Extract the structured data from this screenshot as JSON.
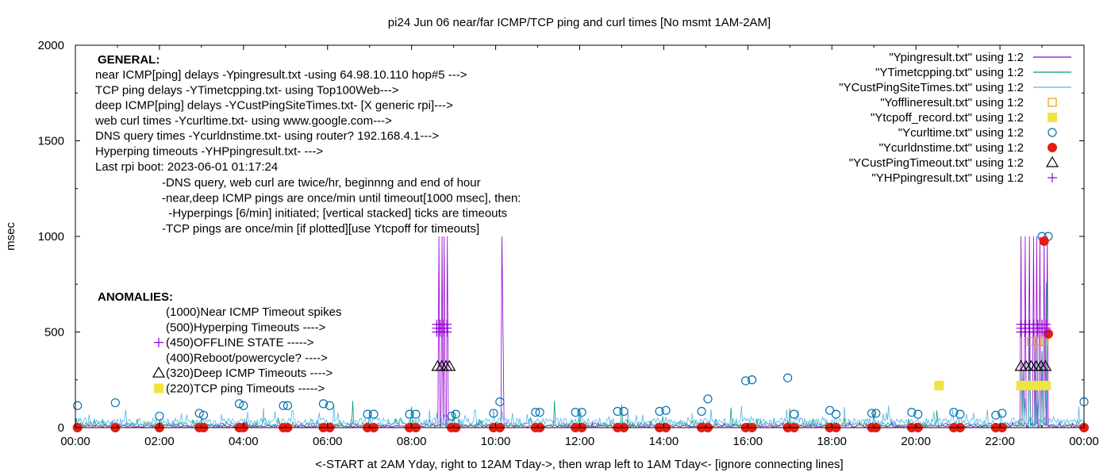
{
  "chart_data": {
    "type": "line",
    "title": "pi24 Jun 06  near/far ICMP/TCP ping and curl times [No msmt 1AM-2AM]",
    "xlabel": "<-START at 2AM Yday, right to 12AM Tday->, then wrap left to 1AM Tday<- [ignore connecting lines]",
    "ylabel": "msec",
    "xlim": [
      0,
      24
    ],
    "ylim": [
      0,
      2000
    ],
    "grid": false,
    "legend_placement": "top-right",
    "x_ticks": [
      "00:00",
      "02:00",
      "04:00",
      "06:00",
      "08:00",
      "10:00",
      "12:00",
      "14:00",
      "16:00",
      "18:00",
      "20:00",
      "22:00",
      "00:00"
    ],
    "y_ticks": [
      "0",
      "500",
      "1000",
      "1500",
      "2000"
    ],
    "general_header": "GENERAL:",
    "general_lines": [
      "near ICMP[ping] delays -Ypingresult.txt -using 64.98.10.110 hop#5 --->",
      "TCP ping delays -YTimetcpping.txt- using Top100Web--->",
      "deep ICMP[ping] delays -YCustPingSiteTimes.txt- [X generic rpi]--->",
      "web curl times -Ycurltime.txt- using www.google.com--->",
      "DNS query times -Ycurldnstime.txt- using router? 192.168.4.1--->",
      "Hyperping timeouts -YHPpingresult.txt- --->",
      "Last rpi boot: 2023-06-01 01:17:24"
    ],
    "notes": [
      "-DNS query, web curl are twice/hr, beginnng and end of hour",
      "-near,deep ICMP pings are once/min until timeout[1000 msec], then:",
      "  -Hyperpings [6/min] initiated; [vertical stacked] ticks are timeouts",
      "-TCP pings are once/min [if plotted][use Ytcpoff for timeouts]"
    ],
    "anomalies_header": "ANOMALIES:",
    "anomalies": [
      {
        "text": "(1000)Near ICMP Timeout spikes",
        "marker": "none"
      },
      {
        "text": "(500)Hyperping Timeouts ---->",
        "marker": "plus"
      },
      {
        "text": "(450)OFFLINE STATE ----->",
        "marker": "none"
      },
      {
        "text": "(400)Reboot/powercycle? ---->",
        "marker": "triangle"
      },
      {
        "text": "(320)Deep ICMP Timeouts ---->",
        "marker": "square"
      },
      {
        "text": "(220)TCP ping Timeouts ----->",
        "marker": "none"
      }
    ],
    "colors": {
      "ping": "#9400d3",
      "tcp": "#009e73",
      "cust": "#56b4e9",
      "offline": "#e69f00",
      "tcpoff": "#f0e442",
      "curl": "#0072b2",
      "dns": "#e51e10",
      "custtimeout": "#000000",
      "hpping": "#9400d3"
    },
    "series": [
      {
        "name": "\"Ypingresult.txt\" using 1:2",
        "style": "line",
        "color": "#9400d3",
        "baseline": 8,
        "spikes": [
          [
            8.65,
            1000
          ],
          [
            8.72,
            1000
          ],
          [
            8.78,
            1000
          ],
          [
            8.86,
            1000
          ],
          [
            10.15,
            1000
          ],
          [
            10.18,
            500
          ],
          [
            22.5,
            1000
          ],
          [
            22.6,
            1000
          ],
          [
            22.7,
            1000
          ],
          [
            22.8,
            1000
          ],
          [
            22.88,
            1000
          ],
          [
            22.95,
            1000
          ],
          [
            23.05,
            1000
          ],
          [
            23.12,
            1000
          ]
        ]
      },
      {
        "name": "\"YTimetcpping.txt\" using 1:2",
        "style": "line",
        "color": "#009e73",
        "baseline": 15,
        "spikes": [
          [
            2.0,
            40
          ],
          [
            6.6,
            140
          ],
          [
            7.0,
            90
          ],
          [
            8.0,
            110
          ],
          [
            9.0,
            90
          ],
          [
            11.4,
            140
          ],
          [
            12.0,
            100
          ],
          [
            13.0,
            120
          ],
          [
            15.6,
            105
          ],
          [
            17.0,
            100
          ],
          [
            19.0,
            90
          ],
          [
            20.5,
            90
          ],
          [
            22.55,
            300
          ],
          [
            22.7,
            480
          ],
          [
            22.85,
            420
          ],
          [
            23.0,
            400
          ],
          [
            23.1,
            760
          ]
        ]
      },
      {
        "name": "\"YCustPingSiteTimes.txt\" using 1:2",
        "style": "line",
        "color": "#56b4e9",
        "baseline": 30,
        "spikes": [
          [
            8.7,
            60
          ],
          [
            10.1,
            50
          ],
          [
            22.6,
            150
          ],
          [
            22.9,
            180
          ],
          [
            23.1,
            200
          ]
        ]
      },
      {
        "name": "\"Yofflineresult.txt\" using 1:2",
        "style": "square-open",
        "color": "#e69f00",
        "points": [
          [
            22.75,
            450
          ],
          [
            22.9,
            450
          ],
          [
            23.05,
            450
          ]
        ]
      },
      {
        "name": "\"Ytcpoff_record.txt\" using 1:2",
        "style": "square-filled",
        "color": "#f0e442",
        "points": [
          [
            20.55,
            220
          ],
          [
            22.5,
            220
          ],
          [
            22.62,
            220
          ],
          [
            22.74,
            220
          ],
          [
            22.86,
            220
          ],
          [
            22.98,
            220
          ],
          [
            23.1,
            220
          ]
        ]
      },
      {
        "name": "\"Ycurltime.txt\" using 1:2",
        "style": "circle-open",
        "color": "#0072b2",
        "points": [
          [
            0.05,
            115
          ],
          [
            0.95,
            130
          ],
          [
            2.0,
            60
          ],
          [
            2.95,
            75
          ],
          [
            3.05,
            65
          ],
          [
            3.9,
            125
          ],
          [
            4.0,
            115
          ],
          [
            4.95,
            115
          ],
          [
            5.05,
            115
          ],
          [
            5.9,
            125
          ],
          [
            6.05,
            115
          ],
          [
            6.95,
            70
          ],
          [
            7.1,
            70
          ],
          [
            7.95,
            70
          ],
          [
            8.1,
            70
          ],
          [
            8.95,
            60
          ],
          [
            9.05,
            70
          ],
          [
            9.95,
            75
          ],
          [
            10.1,
            135
          ],
          [
            10.95,
            80
          ],
          [
            11.05,
            80
          ],
          [
            11.9,
            80
          ],
          [
            12.05,
            80
          ],
          [
            12.9,
            85
          ],
          [
            13.05,
            85
          ],
          [
            13.9,
            85
          ],
          [
            14.05,
            90
          ],
          [
            14.9,
            85
          ],
          [
            15.05,
            150
          ],
          [
            15.95,
            245
          ],
          [
            16.1,
            250
          ],
          [
            16.95,
            260
          ],
          [
            17.1,
            70
          ],
          [
            17.95,
            90
          ],
          [
            18.1,
            70
          ],
          [
            18.95,
            75
          ],
          [
            19.05,
            75
          ],
          [
            19.9,
            80
          ],
          [
            20.05,
            70
          ],
          [
            20.9,
            80
          ],
          [
            21.05,
            70
          ],
          [
            21.9,
            65
          ],
          [
            22.05,
            75
          ],
          [
            23.0,
            1000
          ],
          [
            23.15,
            1000
          ],
          [
            24.0,
            135
          ]
        ]
      },
      {
        "name": "\"Ycurldnstime.txt\" using 1:2",
        "style": "circle-filled",
        "color": "#e51e10",
        "points": [
          [
            0.05,
            0
          ],
          [
            0.95,
            0
          ],
          [
            2.0,
            0
          ],
          [
            2.95,
            0
          ],
          [
            3.05,
            0
          ],
          [
            3.9,
            0
          ],
          [
            4.0,
            0
          ],
          [
            4.95,
            0
          ],
          [
            5.05,
            0
          ],
          [
            5.9,
            0
          ],
          [
            6.05,
            0
          ],
          [
            6.95,
            0
          ],
          [
            7.1,
            0
          ],
          [
            7.95,
            0
          ],
          [
            8.1,
            0
          ],
          [
            8.95,
            0
          ],
          [
            9.05,
            0
          ],
          [
            9.95,
            0
          ],
          [
            10.1,
            0
          ],
          [
            10.95,
            0
          ],
          [
            11.05,
            0
          ],
          [
            11.9,
            0
          ],
          [
            12.05,
            0
          ],
          [
            12.9,
            0
          ],
          [
            13.05,
            0
          ],
          [
            13.9,
            0
          ],
          [
            14.05,
            0
          ],
          [
            14.9,
            0
          ],
          [
            15.05,
            0
          ],
          [
            15.95,
            0
          ],
          [
            16.1,
            0
          ],
          [
            16.95,
            0
          ],
          [
            17.1,
            0
          ],
          [
            17.95,
            0
          ],
          [
            18.1,
            0
          ],
          [
            18.95,
            0
          ],
          [
            19.05,
            0
          ],
          [
            19.9,
            0
          ],
          [
            20.05,
            0
          ],
          [
            20.9,
            0
          ],
          [
            21.05,
            0
          ],
          [
            21.9,
            0
          ],
          [
            22.05,
            0
          ],
          [
            23.05,
            975
          ],
          [
            23.15,
            490
          ],
          [
            24.0,
            0
          ]
        ]
      },
      {
        "name": "\"YCustPingTimeout.txt\" using 1:2",
        "style": "triangle",
        "color": "#000000",
        "points": [
          [
            8.62,
            320
          ],
          [
            8.72,
            320
          ],
          [
            8.82,
            320
          ],
          [
            8.9,
            320
          ],
          [
            22.5,
            320
          ],
          [
            22.62,
            320
          ],
          [
            22.74,
            320
          ],
          [
            22.86,
            320
          ],
          [
            22.98,
            320
          ],
          [
            23.08,
            320
          ]
        ]
      },
      {
        "name": "\"YHPpingresult.txt\" using 1:2",
        "style": "plus",
        "color": "#9400d3",
        "points": [
          [
            8.6,
            500
          ],
          [
            8.6,
            520
          ],
          [
            8.6,
            540
          ],
          [
            8.68,
            500
          ],
          [
            8.68,
            520
          ],
          [
            8.68,
            540
          ],
          [
            8.76,
            500
          ],
          [
            8.76,
            520
          ],
          [
            8.76,
            540
          ],
          [
            8.84,
            500
          ],
          [
            8.84,
            520
          ],
          [
            8.84,
            540
          ],
          [
            22.5,
            500
          ],
          [
            22.5,
            520
          ],
          [
            22.5,
            540
          ],
          [
            22.6,
            500
          ],
          [
            22.6,
            520
          ],
          [
            22.6,
            540
          ],
          [
            22.7,
            500
          ],
          [
            22.7,
            520
          ],
          [
            22.7,
            540
          ],
          [
            22.8,
            500
          ],
          [
            22.8,
            520
          ],
          [
            22.8,
            540
          ],
          [
            22.9,
            500
          ],
          [
            22.9,
            520
          ],
          [
            22.9,
            540
          ],
          [
            23.0,
            500
          ],
          [
            23.0,
            520
          ],
          [
            23.0,
            540
          ],
          [
            23.1,
            500
          ],
          [
            23.1,
            520
          ],
          [
            23.1,
            540
          ]
        ]
      }
    ]
  }
}
